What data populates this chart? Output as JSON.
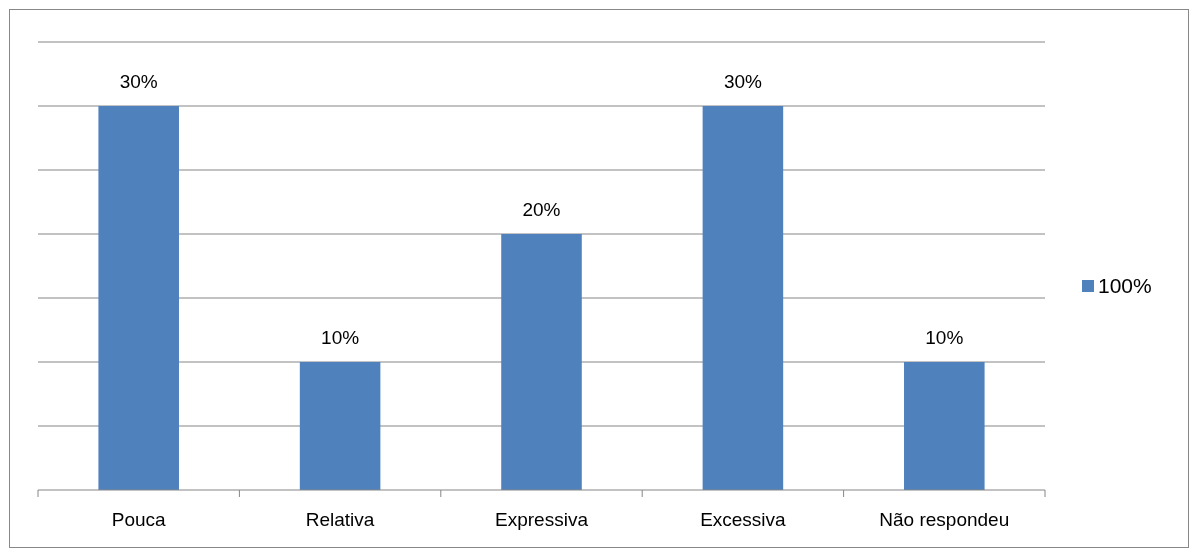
{
  "chart_data": {
    "type": "bar",
    "categories": [
      "Pouca",
      "Relativa",
      "Expressiva",
      "Excessiva",
      "Não respondeu"
    ],
    "series": [
      {
        "name": "100%",
        "color": "#4f81bd",
        "values": [
          30,
          10,
          20,
          30,
          10
        ],
        "value_labels": [
          "30%",
          "10%",
          "20%",
          "30%",
          "10%"
        ]
      }
    ],
    "ylim": [
      0,
      35
    ],
    "yticks": [
      {
        "value": 0,
        "label": null
      },
      {
        "value": 5,
        "label": null
      },
      {
        "value": 10,
        "label": null
      },
      {
        "value": 15,
        "label": null
      },
      {
        "value": 20,
        "label": null
      },
      {
        "value": 25,
        "label": null
      },
      {
        "value": 30,
        "label": null
      },
      {
        "value": 35,
        "label": null
      }
    ],
    "grid": "y",
    "legend": "right",
    "tick_labels": "x"
  }
}
